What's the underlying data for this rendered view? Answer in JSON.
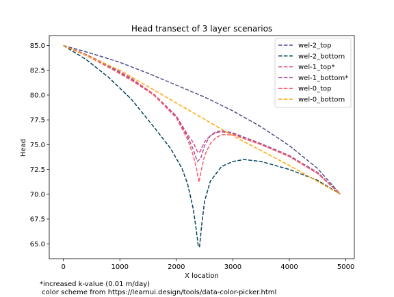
{
  "chart_data": {
    "type": "line",
    "title": "Head transect of 3 layer scenarios",
    "xlabel": "X location",
    "ylabel": "Head",
    "xlim": [
      -250,
      5150
    ],
    "ylim": [
      63.5,
      86.0
    ],
    "xticks": [
      0,
      1000,
      2000,
      3000,
      4000,
      5000
    ],
    "xtick_labels": [
      "0",
      "1000",
      "2000",
      "3000",
      "4000",
      "5000"
    ],
    "yticks": [
      65.0,
      67.5,
      70.0,
      72.5,
      75.0,
      77.5,
      80.0,
      82.5,
      85.0
    ],
    "ytick_labels": [
      "65.0",
      "67.5",
      "70.0",
      "72.5",
      "75.0",
      "77.5",
      "80.0",
      "82.5",
      "85.0"
    ],
    "grid": false,
    "legend_position": "top-right",
    "series": [
      {
        "name": "wel-2_top",
        "color": "#4a4e8a",
        "x": [
          0,
          500,
          1000,
          1500,
          2000,
          2500,
          3000,
          3500,
          4000,
          4500,
          4900
        ],
        "y": [
          85.0,
          84.2,
          83.3,
          82.2,
          81.0,
          79.8,
          78.4,
          76.8,
          74.9,
          72.6,
          70.0
        ]
      },
      {
        "name": "wel-2_bottom",
        "color": "#003f5c",
        "x": [
          0,
          400,
          800,
          1200,
          1600,
          1900,
          2100,
          2200,
          2300,
          2350,
          2390,
          2410,
          2450,
          2500,
          2600,
          2800,
          3000,
          3200,
          3500,
          4000,
          4500,
          4900
        ],
        "y": [
          85.0,
          83.6,
          81.8,
          79.6,
          76.8,
          74.6,
          72.6,
          71.0,
          68.5,
          66.5,
          64.7,
          64.7,
          67.0,
          69.3,
          71.3,
          72.8,
          73.3,
          73.5,
          73.3,
          72.5,
          71.4,
          70.0
        ]
      },
      {
        "name": "wel-1_top*",
        "color": "#d45087",
        "x": [
          0,
          400,
          800,
          1200,
          1600,
          2000,
          2200,
          2300,
          2380,
          2420,
          2500,
          2600,
          2700,
          2800,
          3000,
          3500,
          4000,
          4500,
          4900
        ],
        "y": [
          85.0,
          84.1,
          83.0,
          81.7,
          80.1,
          77.9,
          76.0,
          75.2,
          74.2,
          74.3,
          75.3,
          75.9,
          76.2,
          76.3,
          76.1,
          75.0,
          73.8,
          72.1,
          70.0
        ]
      },
      {
        "name": "wel-1_bottom*",
        "color": "#a05195",
        "x": [
          0,
          400,
          800,
          1200,
          1600,
          2000,
          2200,
          2300,
          2370,
          2430,
          2500,
          2600,
          2700,
          2800,
          3000,
          3500,
          4000,
          4500,
          4900
        ],
        "y": [
          85.0,
          84.0,
          82.9,
          81.6,
          80.0,
          77.8,
          75.8,
          74.5,
          73.3,
          73.6,
          74.9,
          75.9,
          76.3,
          76.4,
          76.2,
          75.1,
          73.9,
          72.2,
          70.0
        ]
      },
      {
        "name": "wel-0_top",
        "color": "#f95d6a",
        "x": [
          0,
          400,
          800,
          1200,
          1600,
          2000,
          2200,
          2300,
          2360,
          2400,
          2440,
          2500,
          2600,
          2700,
          2800,
          3000,
          3500,
          4000,
          4500,
          4900
        ],
        "y": [
          85.0,
          84.0,
          82.8,
          81.5,
          80.0,
          77.7,
          75.5,
          73.9,
          72.5,
          71.2,
          72.4,
          73.9,
          75.1,
          75.7,
          76.0,
          76.0,
          75.0,
          73.8,
          72.1,
          70.0
        ]
      },
      {
        "name": "wel-0_bottom",
        "color": "#ffa600",
        "x": [
          0,
          1000,
          2000,
          3000,
          4000,
          4900
        ],
        "y": [
          85.0,
          82.5,
          79.2,
          75.9,
          72.9,
          70.0
        ]
      }
    ],
    "annotations": [
      "*increased k-value (0.01 m/day)",
      " color scheme from https://learnui.design/tools/data-color-picker.html"
    ]
  }
}
